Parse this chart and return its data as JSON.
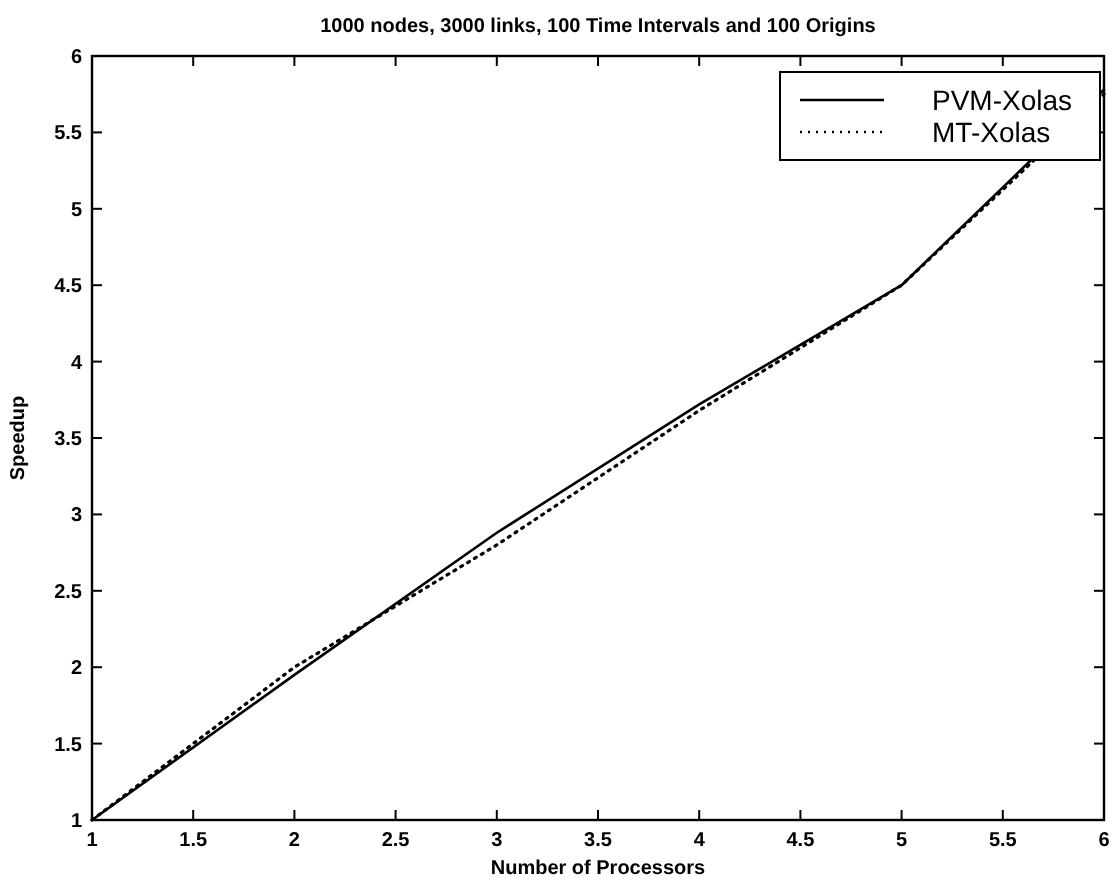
{
  "chart_data": {
    "type": "line",
    "title": "1000 nodes, 3000 links, 100 Time Intervals and 100 Origins",
    "xlabel": "Number of Processors",
    "ylabel": "Speedup",
    "x": [
      1,
      2,
      3,
      4,
      5,
      6
    ],
    "series": [
      {
        "name": "PVM-Xolas",
        "color": "#000000",
        "line_style": "solid",
        "values": [
          1,
          1.95,
          2.88,
          3.72,
          4.5,
          5.78
        ]
      },
      {
        "name": "MT-Xolas",
        "color": "#000000",
        "line_style": "dotted",
        "values": [
          1,
          2.0,
          2.8,
          3.68,
          4.5,
          5.75
        ]
      }
    ],
    "xlim": [
      1,
      6
    ],
    "xticks": [
      1,
      1.5,
      2,
      2.5,
      3,
      3.5,
      4,
      4.5,
      5,
      5.5,
      6
    ],
    "ylim": [
      1,
      6
    ],
    "yticks": [
      1,
      1.5,
      2,
      2.5,
      3,
      3.5,
      4,
      4.5,
      5,
      5.5,
      6
    ],
    "grid": false,
    "legend": "top right"
  }
}
